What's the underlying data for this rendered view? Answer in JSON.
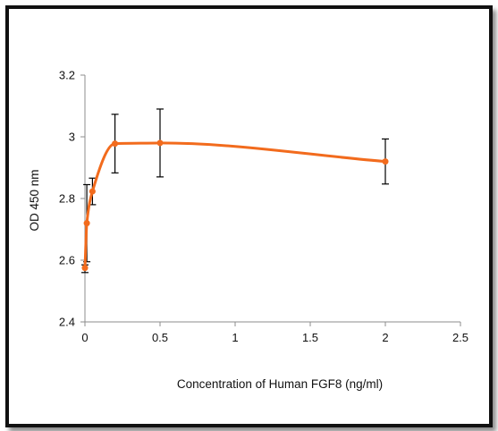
{
  "chart_data": {
    "type": "scatter",
    "title": "",
    "xlabel": "Concentration of Human FGF8 (ng/ml)",
    "ylabel": "OD 450 nm",
    "xlim": [
      0,
      2.5
    ],
    "ylim": [
      2.4,
      3.2
    ],
    "x_ticks": [
      0,
      0.5,
      1,
      1.5,
      2,
      2.5
    ],
    "x_tick_labels": [
      "0",
      "0.5",
      "1",
      "1.5",
      "2",
      "2.5"
    ],
    "y_ticks": [
      2.4,
      2.6,
      2.8,
      3.0,
      3.2
    ],
    "y_tick_labels": [
      "2.4",
      "2.6",
      "2.8",
      "3",
      "3.2"
    ],
    "grid": false,
    "legend": "none",
    "series": [
      {
        "color": "#F26B1D",
        "smoothed": true,
        "points": [
          {
            "x": 0.0,
            "y": 2.575,
            "err_lo": 0.015,
            "err_hi": 0.01
          },
          {
            "x": 0.0125,
            "y": 2.72,
            "err_lo": 0.125,
            "err_hi": 0.125
          },
          {
            "x": 0.05,
            "y": 2.823,
            "err_lo": 0.043,
            "err_hi": 0.043
          },
          {
            "x": 0.2,
            "y": 2.978,
            "err_lo": 0.095,
            "err_hi": 0.095
          },
          {
            "x": 0.5,
            "y": 2.98,
            "err_lo": 0.11,
            "err_hi": 0.11
          },
          {
            "x": 2.0,
            "y": 2.92,
            "err_lo": 0.073,
            "err_hi": 0.073
          }
        ]
      }
    ]
  }
}
